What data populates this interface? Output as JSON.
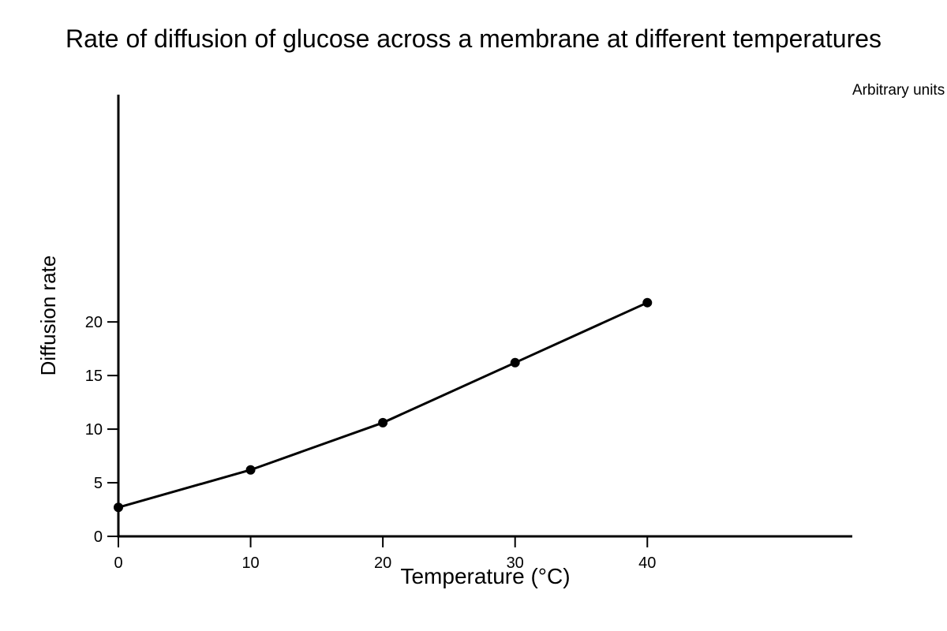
{
  "chart_data": {
    "type": "line",
    "title": "Rate of diffusion of glucose across a membrane at different temperatures",
    "xlabel": "Temperature (°C)",
    "ylabel": "Diffusion rate",
    "units_note": "Arbitrary units",
    "x": [
      0,
      10,
      20,
      30,
      40
    ],
    "series": [
      {
        "values": [
          2.7,
          6.2,
          10.6,
          16.2,
          21.8
        ],
        "color": "#000000"
      }
    ],
    "xticks": [
      0,
      10,
      20,
      30,
      40
    ],
    "yticks": [
      0,
      5,
      10,
      15,
      20
    ],
    "xlim": [
      0,
      55.5
    ],
    "ylim": [
      0,
      41.2
    ],
    "grid": false,
    "legend": "none"
  }
}
